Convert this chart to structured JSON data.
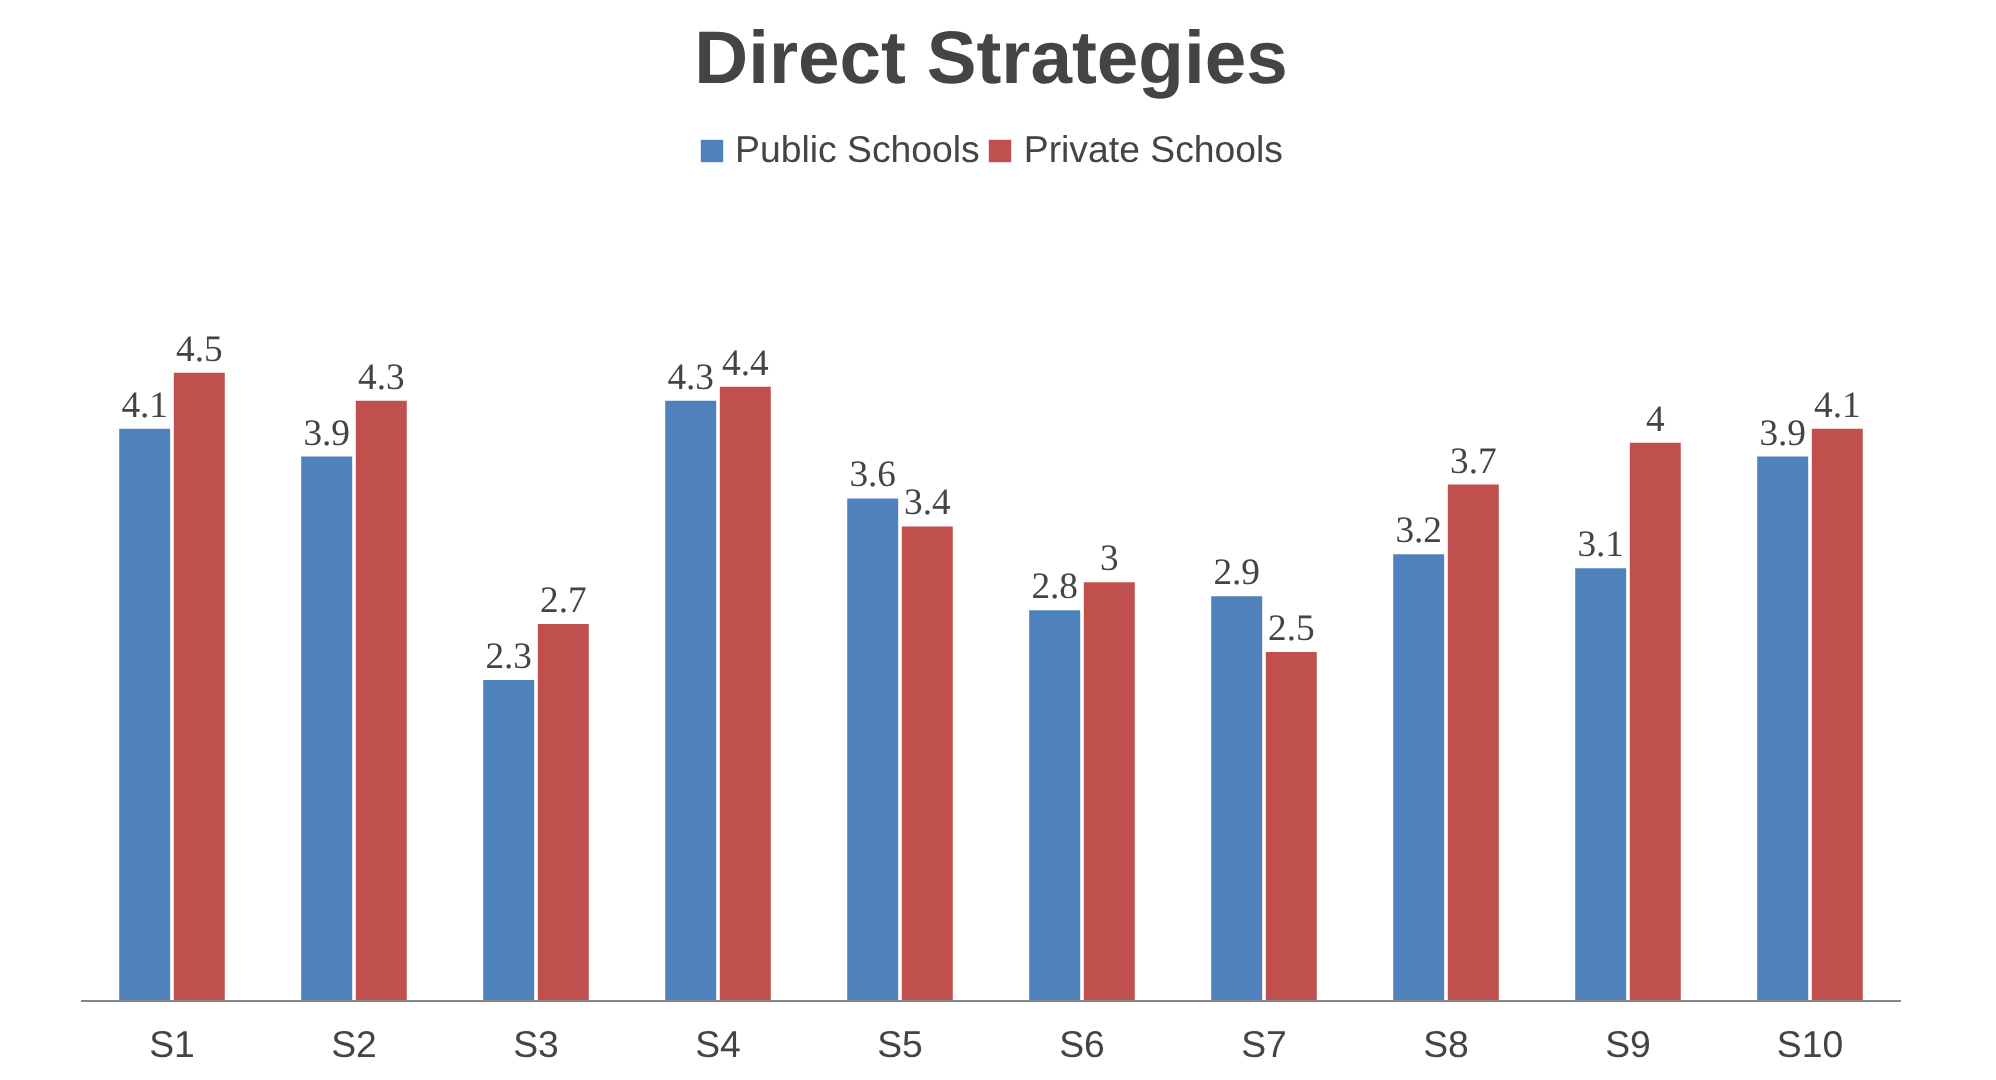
{
  "chart_data": {
    "type": "bar",
    "title": "Direct Strategies",
    "categories": [
      "S1",
      "S2",
      "S3",
      "S4",
      "S5",
      "S6",
      "S7",
      "S8",
      "S9",
      "S10"
    ],
    "series": [
      {
        "name": "Public Schools",
        "color": "#4f81bd",
        "values": [
          4.1,
          3.9,
          2.3,
          4.3,
          3.6,
          2.8,
          2.9,
          3.2,
          3.1,
          3.9
        ]
      },
      {
        "name": "Private Schools",
        "color": "#c0504d",
        "values": [
          4.5,
          4.3,
          2.7,
          4.4,
          3.4,
          3,
          2.5,
          3.7,
          4,
          4.1
        ]
      }
    ],
    "data_labels": true,
    "legend": "top",
    "grid": false,
    "tick_labels": "x"
  }
}
